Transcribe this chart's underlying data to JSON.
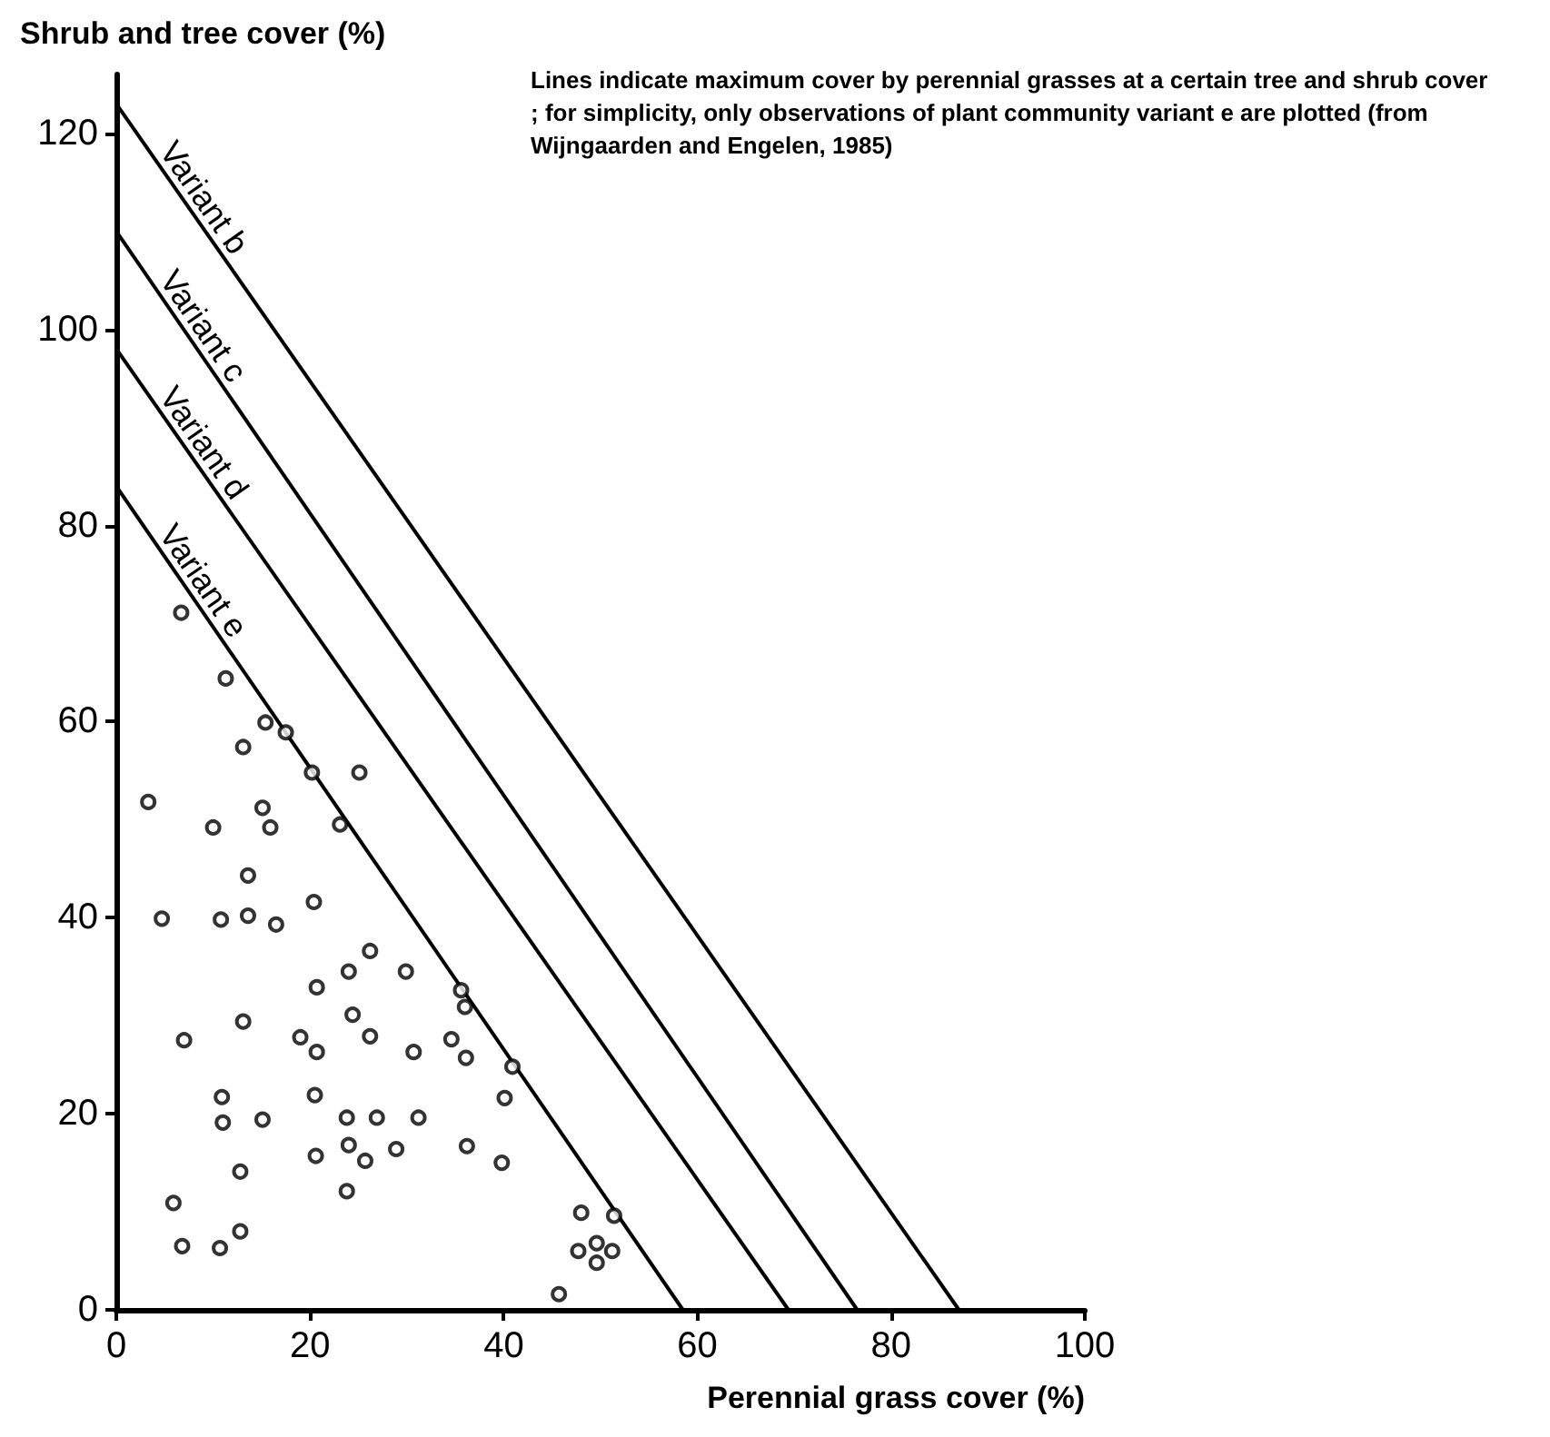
{
  "chart_data": {
    "type": "scatter",
    "xlabel": "Perennial grass cover (%)",
    "ylabel": "Shrub and tree cover (%)",
    "annotations": [
      "Lines indicate maximum cover by perennial grasses at a certain tree and shrub cover; for simplicity, only observations of plant community variant e are plotted (from Wijngaarden and Engelen, 1985)"
    ],
    "xlim": [
      0,
      100
    ],
    "ylim": [
      0,
      126
    ],
    "xticks": [
      0,
      20,
      40,
      60,
      80,
      100
    ],
    "yticks": [
      0,
      20,
      40,
      60,
      80,
      100,
      120
    ],
    "grid": false,
    "legend": false,
    "series": [
      {
        "color": "#000000",
        "marker": "circle",
        "x": [
          3.3,
          4.7,
          5.9,
          6.8,
          7.0,
          10.0,
          10.7,
          10.8,
          10.9,
          11.0,
          12.8,
          12.8,
          13.1,
          13.1,
          13.6,
          13.6,
          15.1,
          15.1,
          15.4,
          15.9,
          16.5,
          17.5,
          19.0,
          20.2,
          20.4,
          20.5,
          20.6,
          20.7,
          20.7,
          23.1,
          23.8,
          23.8,
          24.0,
          24.0,
          24.4,
          25.1,
          25.7,
          26.2,
          26.2,
          26.9,
          28.9,
          29.9,
          30.7,
          31.2,
          34.6,
          35.6,
          36.0,
          36.1,
          36.2,
          39.8,
          40.1,
          40.9,
          45.7,
          47.7,
          48.0,
          49.6,
          49.6,
          51.4,
          51.2,
          6.7,
          11.3
        ],
        "values": [
          51.8,
          39.9,
          10.9,
          6.5,
          27.5,
          49.2,
          6.3,
          39.8,
          21.7,
          19.1,
          14.1,
          8.0,
          57.4,
          29.4,
          44.3,
          40.2,
          51.2,
          19.4,
          59.9,
          49.2,
          39.3,
          58.9,
          27.8,
          54.8,
          41.6,
          21.9,
          15.7,
          32.9,
          26.3,
          49.5,
          12.1,
          19.6,
          16.8,
          34.5,
          30.1,
          54.8,
          15.2,
          36.6,
          27.9,
          19.6,
          16.4,
          34.5,
          26.3,
          19.6,
          27.6,
          32.6,
          30.9,
          25.7,
          16.7,
          15.0,
          21.6,
          24.8,
          1.6,
          6.0,
          9.9,
          6.8,
          4.8,
          9.6,
          6.0,
          71.1,
          64.4
        ]
      },
      {
        "type": "line",
        "name": "Variant b",
        "color": "#000000",
        "x": [
          0,
          87
        ],
        "values": [
          123,
          0
        ]
      },
      {
        "type": "line",
        "name": "Variant c",
        "color": "#000000",
        "x": [
          0,
          76.5
        ],
        "values": [
          110,
          0
        ]
      },
      {
        "type": "line",
        "name": "Variant d",
        "color": "#000000",
        "x": [
          0,
          69.4
        ],
        "values": [
          98,
          0
        ]
      },
      {
        "type": "line",
        "name": "Variant e",
        "color": "#000000",
        "x": [
          0,
          58.5
        ],
        "values": [
          84,
          0
        ]
      }
    ]
  }
}
